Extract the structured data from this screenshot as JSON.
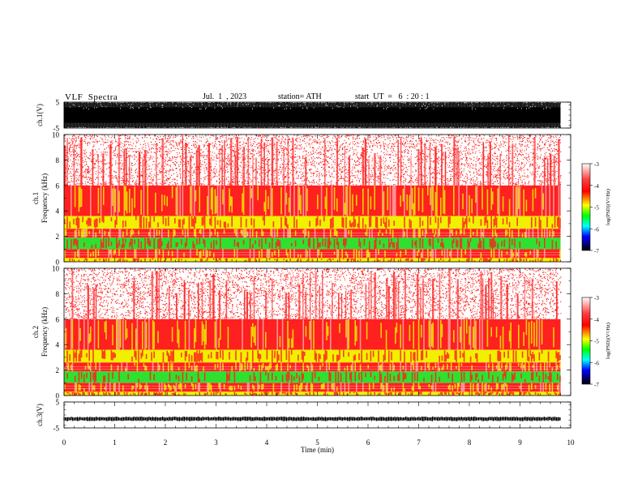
{
  "header": {
    "title": "VLF  Spectra",
    "date": "Jul.  1  , 2023",
    "station": "station= ATH",
    "start": "start  UT  =   6  : 20 : 1"
  },
  "chart_data": [
    {
      "type": "line",
      "name": "ch1-waveform",
      "ylabel": "ch.1(V)",
      "ylim": [
        -5,
        5
      ],
      "yticks": [
        "5",
        "-5"
      ],
      "xlim": [
        0,
        10
      ],
      "x_end": 9.8,
      "amplitude": "saturated, approx ±5 V"
    },
    {
      "type": "heatmap",
      "name": "ch1-spectrogram",
      "ylabel": [
        "ch.1",
        "Frequency  (kHz)"
      ],
      "ylim": [
        0,
        10
      ],
      "yticks": [
        "0",
        "2",
        "4",
        "6",
        "8",
        "10"
      ],
      "xlim": [
        0,
        10
      ],
      "x_end": 9.8,
      "bands_kHz": [
        {
          "range": [
            0.0,
            0.3
          ],
          "level": "yellow"
        },
        {
          "range": [
            0.3,
            1.0
          ],
          "level": "red"
        },
        {
          "range": [
            1.0,
            1.9
          ],
          "level": "green"
        },
        {
          "range": [
            1.9,
            2.6
          ],
          "level": "red"
        },
        {
          "range": [
            2.6,
            3.6
          ],
          "level": "yellow"
        },
        {
          "range": [
            3.6,
            6.0
          ],
          "level": "red"
        },
        {
          "range": [
            6.0,
            10.0
          ],
          "level": "sparse red"
        }
      ],
      "colorbar": {
        "label": "log(PSD)(V²/Hz)",
        "ticks": [
          "-3",
          "-4",
          "-5",
          "-6",
          "-7"
        ]
      }
    },
    {
      "type": "heatmap",
      "name": "ch2-spectrogram",
      "ylabel": [
        "ch.2",
        "Frequency  (kHz)"
      ],
      "ylim": [
        0,
        10
      ],
      "yticks": [
        "0",
        "2",
        "4",
        "6",
        "8",
        "10"
      ],
      "xlim": [
        0,
        10
      ],
      "x_end": 9.8,
      "bands_kHz": [
        {
          "range": [
            0.0,
            0.3
          ],
          "level": "yellow"
        },
        {
          "range": [
            0.3,
            1.0
          ],
          "level": "red"
        },
        {
          "range": [
            1.0,
            1.9
          ],
          "level": "green"
        },
        {
          "range": [
            1.9,
            2.6
          ],
          "level": "red"
        },
        {
          "range": [
            2.6,
            3.6
          ],
          "level": "yellow"
        },
        {
          "range": [
            3.6,
            6.0
          ],
          "level": "red"
        },
        {
          "range": [
            6.0,
            10.0
          ],
          "level": "sparse red"
        }
      ],
      "colorbar": {
        "label": "log(PSD)(V²/Hz)",
        "ticks": [
          "-3",
          "-4",
          "-5",
          "-6",
          "-7"
        ]
      }
    },
    {
      "type": "line",
      "name": "ch3-waveform",
      "ylabel": "ch.3(V)",
      "ylim": [
        -5,
        5
      ],
      "yticks": [
        "5",
        "-5"
      ],
      "xlim": [
        0,
        10
      ],
      "x_end": 9.8,
      "amplitude": "small, approx -1.5 V"
    }
  ],
  "xaxis": {
    "label": "Time  (min)",
    "ticks": [
      "0",
      "1",
      "2",
      "3",
      "4",
      "5",
      "6",
      "7",
      "8",
      "9",
      "10"
    ]
  },
  "colors": {
    "red": "#ff2020",
    "yellow": "#f0f000",
    "green": "#30e030",
    "white": "#ffffff",
    "colorbar": [
      "#ffffff",
      "#ff0000",
      "#ffff00",
      "#00ff00",
      "#00ffff",
      "#0000ff",
      "#000000"
    ]
  }
}
